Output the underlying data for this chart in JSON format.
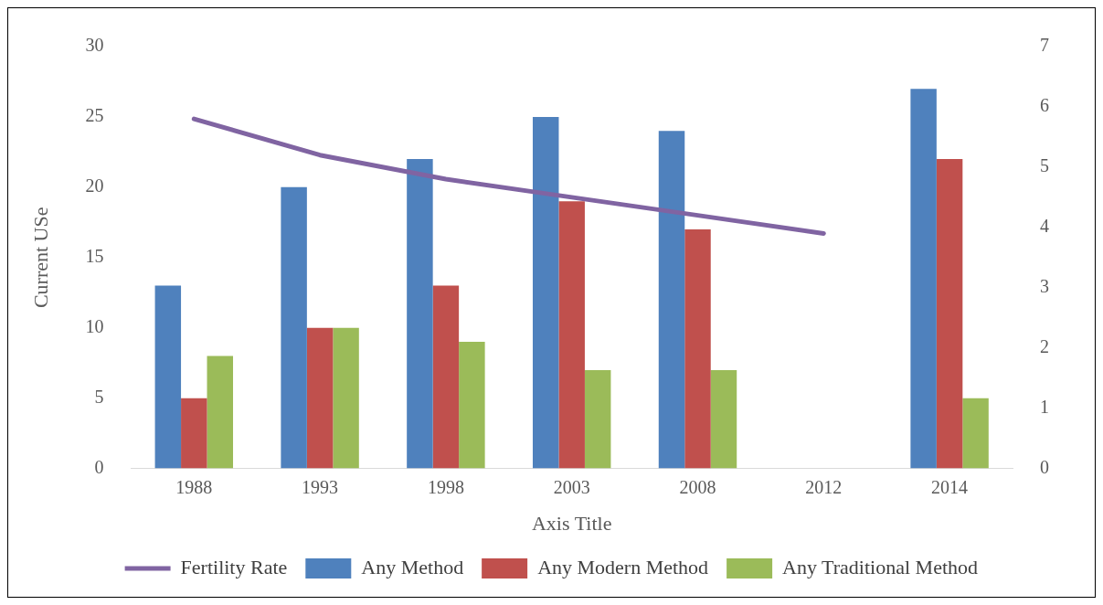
{
  "chart_data": {
    "type": "bar",
    "xlabel": "Axis Title",
    "ylabel": "Current USe",
    "categories": [
      "1988",
      "1993",
      "1998",
      "2003",
      "2008",
      "2012",
      "2014"
    ],
    "series": [
      {
        "name": "Any Method",
        "color": "#4f81bd",
        "values": [
          13,
          20,
          22,
          25,
          24,
          null,
          27
        ]
      },
      {
        "name": "Any Modern Method",
        "color": "#c0504d",
        "values": [
          5,
          10,
          13,
          19,
          17,
          null,
          22
        ]
      },
      {
        "name": "Any Traditional Method",
        "color": "#9bbb59",
        "values": [
          8,
          10,
          9,
          7,
          7,
          null,
          5
        ]
      },
      {
        "name": "Fertility Rate",
        "type": "line",
        "axis": "y2",
        "color": "#8064a2",
        "values": [
          5.8,
          5.2,
          4.8,
          4.5,
          4.2,
          3.9,
          null
        ]
      }
    ],
    "ylim": [
      0,
      30
    ],
    "yticks": [
      0,
      5,
      10,
      15,
      20,
      25,
      30
    ],
    "y2lim": [
      0,
      7
    ],
    "y2ticks": [
      0,
      1,
      2,
      3,
      4,
      5,
      6,
      7
    ],
    "legend": "bottom",
    "marker": "none"
  }
}
